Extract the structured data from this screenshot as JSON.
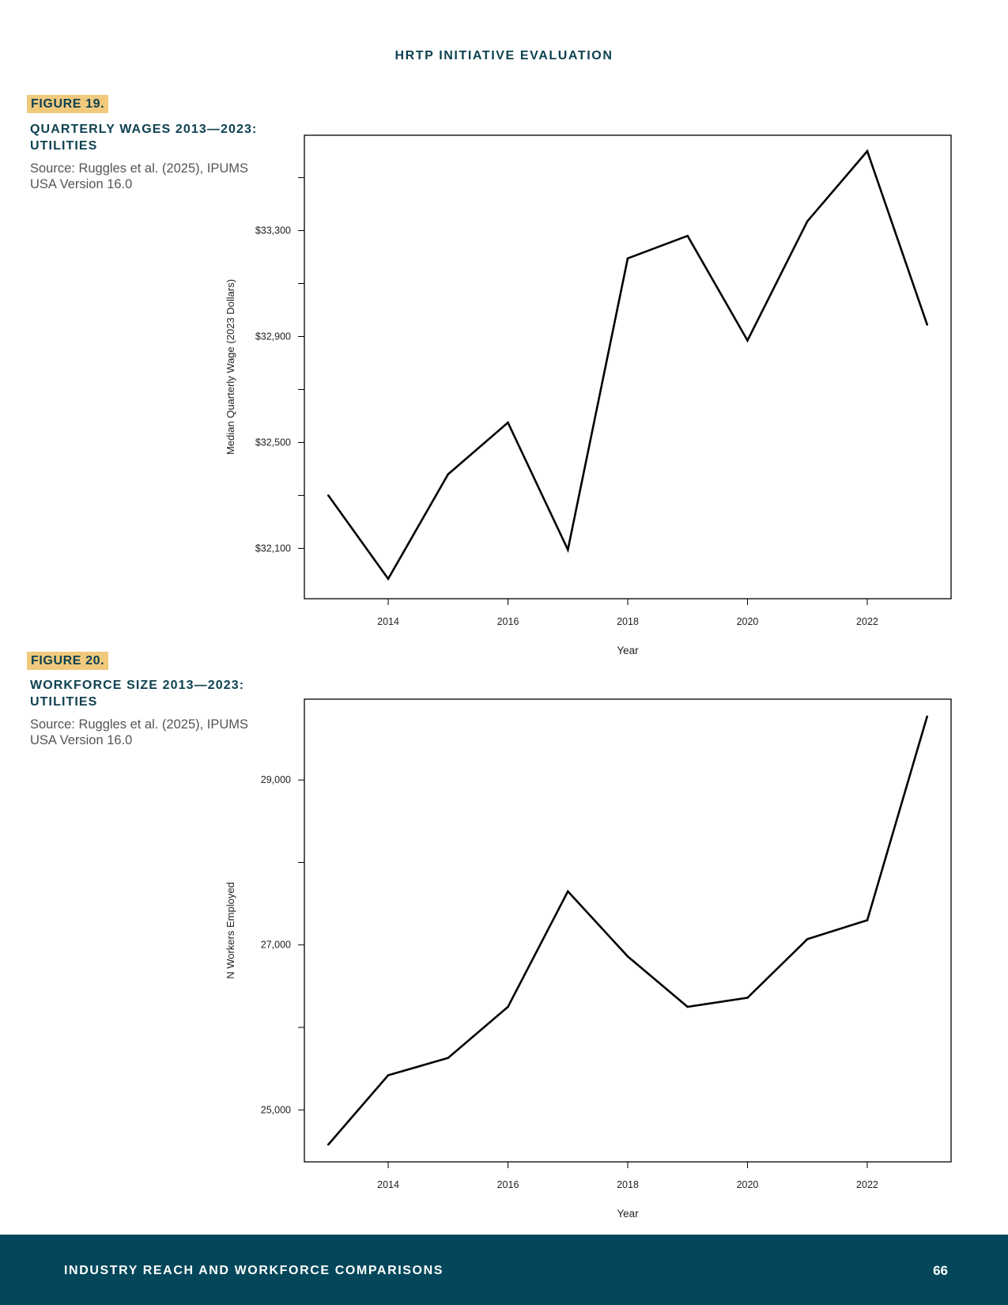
{
  "header": {
    "title": "HRTP INITIATIVE EVALUATION"
  },
  "figures": [
    {
      "label": "FIGURE 19.",
      "title": "QUARTERLY WAGES 2013—2023: UTILITIES",
      "source": "Source: Ruggles et al. (2025), IPUMS USA Version 16.0"
    },
    {
      "label": "FIGURE 20.",
      "title": "WORKFORCE SIZE 2013—2023: UTILITIES",
      "source": "Source: Ruggles et al. (2025), IPUMS USA Version 16.0"
    }
  ],
  "chart_data": [
    {
      "type": "line",
      "title": "",
      "xlabel": "Year",
      "ylabel": "Median Quarterly Wage (2023 Dollars)",
      "x": [
        2013,
        2014,
        2015,
        2016,
        2017,
        2018,
        2019,
        2020,
        2021,
        2022,
        2023
      ],
      "series": [
        {
          "values": [
            32300,
            31985,
            32380,
            32575,
            32095,
            33195,
            33280,
            32885,
            33335,
            33600,
            32945
          ]
        }
      ],
      "xlim": [
        2012.6,
        2023.4
      ],
      "ylim": [
        31910,
        33660
      ],
      "xticks": [
        2014,
        2016,
        2018,
        2020,
        2022
      ],
      "xtick_labels": [
        "2014",
        "2016",
        "2018",
        "2020",
        "2022"
      ],
      "yticks": [
        32100,
        32300,
        32500,
        32700,
        32900,
        33100,
        33300,
        33500
      ],
      "ytick_labels": [
        "$32,100",
        "",
        "$32,500",
        "",
        "$32,900",
        "",
        "$33,300",
        ""
      ],
      "grid": false,
      "line_color": "#000000"
    },
    {
      "type": "line",
      "title": "",
      "xlabel": "Year",
      "ylabel": "N Workers Employed",
      "x": [
        2013,
        2014,
        2015,
        2016,
        2017,
        2018,
        2019,
        2020,
        2021,
        2022,
        2023
      ],
      "series": [
        {
          "values": [
            24580,
            25420,
            25630,
            26250,
            27650,
            26860,
            26250,
            26360,
            27070,
            27300,
            29770
          ]
        }
      ],
      "xlim": [
        2012.6,
        2023.4
      ],
      "ylim": [
        24370,
        29980
      ],
      "xticks": [
        2014,
        2016,
        2018,
        2020,
        2022
      ],
      "xtick_labels": [
        "2014",
        "2016",
        "2018",
        "2020",
        "2022"
      ],
      "yticks": [
        25000,
        26000,
        27000,
        28000,
        29000
      ],
      "ytick_labels": [
        "25,000",
        "",
        "27,000",
        "",
        "29,000"
      ],
      "grid": false,
      "line_color": "#000000"
    }
  ],
  "footer": {
    "section_title": "INDUSTRY REACH AND WORKFORCE COMPARISONS",
    "page_number": "66"
  }
}
